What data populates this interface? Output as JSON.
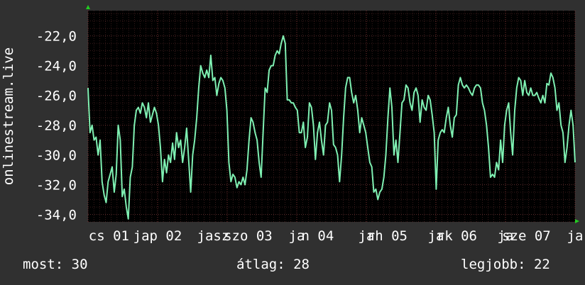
{
  "colors": {
    "background": "#303030",
    "plot_background": "#000000",
    "grid": "#5a2a2a",
    "line": "#7ff0b2",
    "arrow": "#22cc22",
    "text": "#ffffff"
  },
  "chart_data": {
    "type": "line",
    "side_label": "onlinestream.live",
    "y_ticks": [
      "-22,0",
      "-24,0",
      "-26,0",
      "-28,0",
      "-30,0",
      "-32,0",
      "-34,0"
    ],
    "y_tick_values": [
      -22,
      -24,
      -26,
      -28,
      -30,
      -32,
      -34
    ],
    "ylim": [
      -34.5,
      -20.3
    ],
    "x_ticks": [
      "cs 01",
      "jap 02",
      "jasz",
      "szo 03",
      "ja",
      "n 04",
      "ja",
      "rh 05",
      "ja",
      "rk 06",
      "ja",
      "sze 07",
      "ja"
    ],
    "x_tick_positions": [
      0.3,
      1.0,
      1.8,
      2.3,
      3.0,
      3.3,
      4.0,
      4.3,
      5.0,
      5.3,
      6.0,
      6.3,
      7.0
    ],
    "xlim": [
      0,
      7.0
    ],
    "grid": true,
    "y": [
      -25.5,
      -28.5,
      -28.0,
      -29.0,
      -28.8,
      -30.0,
      -29.0,
      -31.8,
      -32.7,
      -33.2,
      -31.8,
      -31.3,
      -30.8,
      -32.5,
      -31.3,
      -28.0,
      -29.0,
      -32.8,
      -32.3,
      -33.5,
      -34.3,
      -31.5,
      -30.8,
      -28.0,
      -27.0,
      -26.8,
      -27.2,
      -26.5,
      -26.8,
      -27.5,
      -26.5,
      -27.8,
      -27.3,
      -26.8,
      -27.2,
      -28.0,
      -29.5,
      -31.8,
      -30.3,
      -31.2,
      -30.0,
      -30.5,
      -29.2,
      -30.3,
      -28.5,
      -29.5,
      -29.0,
      -30.5,
      -29.5,
      -28.2,
      -30.3,
      -32.5,
      -30.0,
      -29.0,
      -27.5,
      -25.5,
      -24.0,
      -24.5,
      -24.8,
      -24.3,
      -24.8,
      -23.3,
      -25.0,
      -24.8,
      -26.0,
      -25.2,
      -24.8,
      -25.0,
      -25.5,
      -27.0,
      -30.5,
      -31.8,
      -31.3,
      -31.5,
      -32.2,
      -31.8,
      -32.0,
      -31.5,
      -32.0,
      -31.0,
      -29.0,
      -27.5,
      -27.8,
      -28.5,
      -29.0,
      -30.5,
      -31.5,
      -28.5,
      -25.5,
      -25.8,
      -24.3,
      -24.0,
      -24.0,
      -23.3,
      -23.0,
      -23.2,
      -22.5,
      -22.0,
      -22.5,
      -26.3,
      -26.3,
      -26.5,
      -26.5,
      -26.8,
      -27.0,
      -28.5,
      -28.5,
      -27.8,
      -29.5,
      -28.8,
      -26.5,
      -26.8,
      -28.0,
      -30.3,
      -28.5,
      -27.8,
      -29.0,
      -30.0,
      -28.0,
      -27.8,
      -26.5,
      -27.0,
      -29.3,
      -29.5,
      -30.0,
      -31.8,
      -30.0,
      -27.5,
      -25.5,
      -24.8,
      -24.8,
      -25.8,
      -26.5,
      -26.0,
      -27.0,
      -28.5,
      -27.5,
      -28.0,
      -28.5,
      -29.5,
      -30.5,
      -30.8,
      -32.5,
      -32.3,
      -33.0,
      -32.5,
      -32.3,
      -31.5,
      -30.0,
      -27.5,
      -25.5,
      -26.8,
      -30.0,
      -29.0,
      -30.5,
      -28.5,
      -26.5,
      -26.3,
      -25.3,
      -25.5,
      -26.5,
      -27.0,
      -25.8,
      -25.5,
      -26.0,
      -27.8,
      -26.3,
      -26.8,
      -27.0,
      -26.0,
      -26.3,
      -27.3,
      -28.5,
      -32.3,
      -29.0,
      -28.5,
      -28.3,
      -28.5,
      -27.5,
      -26.8,
      -28.0,
      -28.8,
      -27.5,
      -27.3,
      -25.3,
      -24.8,
      -25.3,
      -25.5,
      -25.3,
      -25.5,
      -25.8,
      -26.0,
      -25.5,
      -25.3,
      -25.3,
      -25.5,
      -26.5,
      -27.0,
      -28.0,
      -29.5,
      -31.5,
      -31.3,
      -31.5,
      -30.5,
      -31.0,
      -29.0,
      -30.5,
      -28.0,
      -27.0,
      -26.5,
      -28.5,
      -30.0,
      -27.0,
      -25.5,
      -24.8,
      -25.0,
      -26.0,
      -25.0,
      -25.8,
      -26.0,
      -25.5,
      -26.0,
      -26.0,
      -25.8,
      -26.2,
      -26.5,
      -26.0,
      -26.5,
      -25.2,
      -25.3,
      -24.5,
      -24.8,
      -25.5,
      -27.0,
      -26.5,
      -28.0,
      -28.5,
      -30.5,
      -29.5,
      -28.0,
      -27.0,
      -28.0,
      -30.5
    ]
  },
  "stats": {
    "current": "most: 30",
    "average": "átlag: 28",
    "best": "legjobb: 22"
  }
}
